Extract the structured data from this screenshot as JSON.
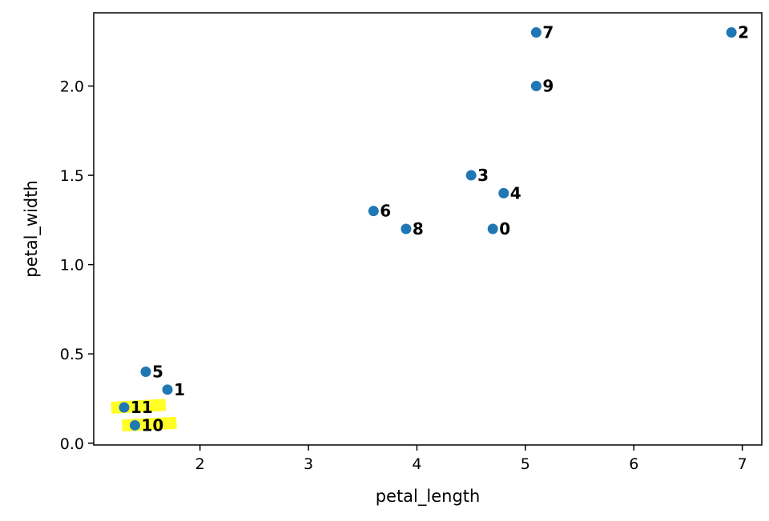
{
  "chart_data": {
    "type": "scatter",
    "title": "",
    "xlabel": "petal_length",
    "ylabel": "petal_width",
    "xlim": [
      1.02,
      7.18
    ],
    "ylim": [
      -0.01,
      2.41
    ],
    "xticks": [
      2,
      3,
      4,
      5,
      6,
      7
    ],
    "yticks": [
      0.0,
      0.5,
      1.0,
      1.5,
      2.0
    ],
    "ytick_labels": [
      "0.0",
      "0.5",
      "1.0",
      "1.5",
      "2.0"
    ],
    "grid": false,
    "point_color": "#1f77b4",
    "highlight_color": "#ffff00",
    "points": [
      {
        "label": "0",
        "x": 4.7,
        "y": 1.2
      },
      {
        "label": "1",
        "x": 1.7,
        "y": 0.3
      },
      {
        "label": "2",
        "x": 6.9,
        "y": 2.3
      },
      {
        "label": "3",
        "x": 4.5,
        "y": 1.5
      },
      {
        "label": "4",
        "x": 4.8,
        "y": 1.4
      },
      {
        "label": "5",
        "x": 1.5,
        "y": 0.4
      },
      {
        "label": "6",
        "x": 3.6,
        "y": 1.3
      },
      {
        "label": "7",
        "x": 5.1,
        "y": 2.3
      },
      {
        "label": "8",
        "x": 3.9,
        "y": 1.2
      },
      {
        "label": "9",
        "x": 5.1,
        "y": 2.0
      },
      {
        "label": "10",
        "x": 1.4,
        "y": 0.1,
        "highlighted": true
      },
      {
        "label": "11",
        "x": 1.3,
        "y": 0.2,
        "highlighted": true
      }
    ]
  }
}
